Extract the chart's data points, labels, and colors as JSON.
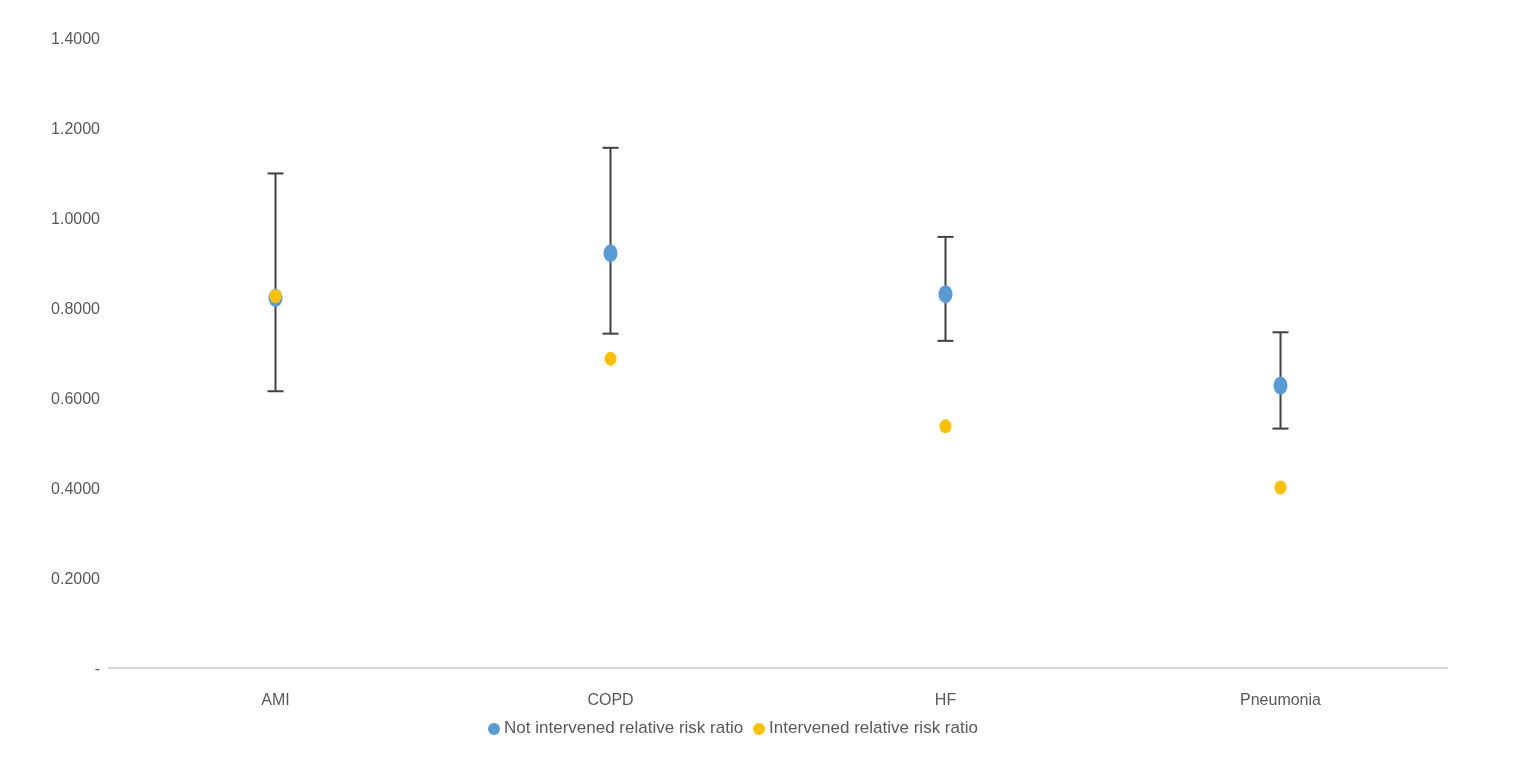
{
  "chart_data": {
    "type": "scatter",
    "categories": [
      "AMI",
      "COPD",
      "HF",
      "Pneumonia"
    ],
    "series": [
      {
        "name": "Not intervened relative risk ratio",
        "color": "#5b9bd5",
        "values": [
          0.826,
          0.925,
          0.834,
          0.631
        ],
        "errors": [
          [
            0.615,
            1.099
          ],
          [
            0.743,
            1.156
          ],
          [
            0.727,
            0.958
          ],
          [
            0.532,
            0.746
          ]
        ]
      },
      {
        "name": "Intervened relative risk ratio",
        "color": "#ffc000",
        "values": [
          0.826,
          0.687,
          0.537,
          0.401
        ]
      }
    ],
    "ylim": [
      0,
      1.4
    ],
    "yticks": [
      {
        "value": 0,
        "label": "-"
      },
      {
        "value": 0.2,
        "label": "0.2000"
      },
      {
        "value": 0.4,
        "label": "0.4000"
      },
      {
        "value": 0.6,
        "label": "0.6000"
      },
      {
        "value": 0.8,
        "label": "0.8000"
      },
      {
        "value": 1.0,
        "label": "1.0000"
      },
      {
        "value": 1.2,
        "label": "1.2000"
      },
      {
        "value": 1.4,
        "label": "1.4000"
      }
    ],
    "grid": false,
    "legend": "bottom",
    "marker": "circle"
  }
}
